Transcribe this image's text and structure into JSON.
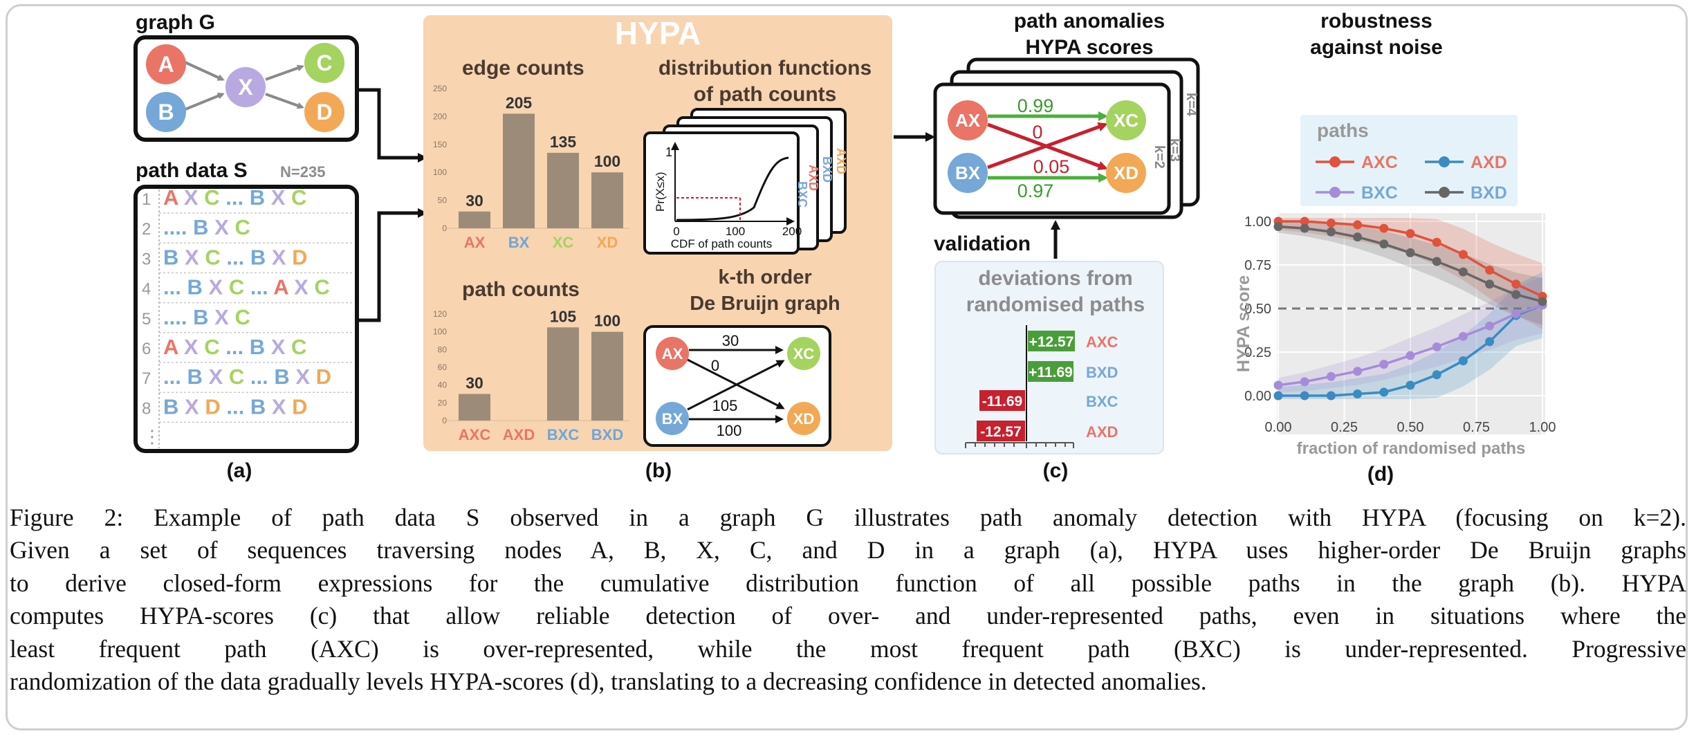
{
  "panel_a": {
    "graph_title": "graph G",
    "nodes": {
      "A": "A",
      "B": "B",
      "X": "X",
      "C": "C",
      "D": "D"
    },
    "path_data_title": "path data S",
    "n_label": "N=235",
    "rows": [
      {
        "num": "1",
        "text": "A X C ... B X C"
      },
      {
        "num": "2",
        "text": "....   B X C"
      },
      {
        "num": "3",
        "text": "B X C ... B X D"
      },
      {
        "num": "4",
        "text": "... B X C ... A X C"
      },
      {
        "num": "5",
        "text": "....       B X C"
      },
      {
        "num": "6",
        "text": "A X C ... B X C"
      },
      {
        "num": "7",
        "text": "... B X C ... B X D"
      },
      {
        "num": "8",
        "text": "B X D ... B X D"
      }
    ],
    "more": "⋮",
    "caption": "(a)"
  },
  "panel_b": {
    "title": "HYPA",
    "edge_counts_title": "edge counts",
    "path_counts_title": "path counts",
    "dist_title_1": "distribution functions",
    "dist_title_2": "of path counts",
    "cdf_ylabel": "Pr(X≤x)",
    "cdf_y_tick": "1",
    "cdf_x_ticks": [
      "0",
      "100",
      "200"
    ],
    "cdf_xlabel": "CDF of path counts",
    "stack_labels": [
      "BXC",
      "AXD",
      "BXD",
      "AXD"
    ],
    "debruijn_title_1": "k-th order",
    "debruijn_title_2": "De Bruijn graph",
    "debruijn_nodes": [
      "AX",
      "BX",
      "XC",
      "XD"
    ],
    "debruijn_edge_labels": [
      "30",
      "0",
      "105",
      "100"
    ],
    "caption": "(b)"
  },
  "panel_c": {
    "title_1": "path anomalies",
    "title_2": "HYPA scores",
    "layers": [
      "k=4",
      "k=3",
      "k=2"
    ],
    "nodes": [
      "AX",
      "BX",
      "XC",
      "XD"
    ],
    "edge_scores": [
      "0.99",
      "0",
      "0.05",
      "0.97"
    ],
    "validation_label": "validation",
    "deviation_title_1": "deviations from",
    "deviation_title_2": "randomised paths",
    "deviation_bars": [
      {
        "label": "AXC",
        "value_text": "+12.57"
      },
      {
        "label": "BXD",
        "value_text": "+11.69"
      },
      {
        "label": "BXC",
        "value_text": "-11.69"
      },
      {
        "label": "AXD",
        "value_text": "-12.57"
      }
    ],
    "caption": "(c)"
  },
  "panel_d": {
    "title_1": "robustness",
    "title_2": "against noise",
    "legend_title": "paths",
    "caption": "(d)"
  },
  "chart_data": [
    {
      "type": "bar",
      "title": "edge counts",
      "categories": [
        "AX",
        "BX",
        "XC",
        "XD"
      ],
      "values": [
        30,
        205,
        135,
        100
      ],
      "ylim": [
        0,
        250
      ],
      "yticks": [
        "0",
        "50",
        "100",
        "150",
        "200",
        "250"
      ],
      "category_colors": [
        "#e8746b",
        "#6fa5d6",
        "#a5d35f",
        "#f2a854"
      ]
    },
    {
      "type": "bar",
      "title": "path counts",
      "categories": [
        "AXC",
        "AXD",
        "BXC",
        "BXD"
      ],
      "values": [
        30,
        0,
        105,
        100
      ],
      "value_labels": [
        "30",
        "",
        "105",
        "100"
      ],
      "ylim": [
        0,
        120
      ],
      "yticks": [
        "0",
        "20",
        "40",
        "60",
        "80",
        "100",
        "120"
      ],
      "category_colors": [
        "#e8746b",
        "#e8746b",
        "#6fa5d6",
        "#6fa5d6"
      ]
    },
    {
      "type": "line",
      "xlabel": "fraction of randomised paths",
      "ylabel": "HYPA score",
      "x": [
        0,
        0.1,
        0.2,
        0.3,
        0.4,
        0.5,
        0.6,
        0.7,
        0.8,
        0.9,
        1.0
      ],
      "xticks": [
        "0.00",
        "0.25",
        "0.50",
        "0.75",
        "1.00"
      ],
      "yticks": [
        "0.00",
        "0.25",
        "0.50",
        "0.75",
        "1.00"
      ],
      "xlim": [
        0,
        1
      ],
      "ylim": [
        0,
        1
      ],
      "reference_line": 0.5,
      "legend_position": "top",
      "series": [
        {
          "name": "AXC",
          "color": "#e0523c",
          "values": [
            1.0,
            1.0,
            0.99,
            0.98,
            0.96,
            0.93,
            0.88,
            0.81,
            0.72,
            0.64,
            0.57
          ],
          "band": 0.14
        },
        {
          "name": "AXD",
          "color": "#3a8bc2",
          "values": [
            0.0,
            0.0,
            0.0,
            0.01,
            0.02,
            0.06,
            0.12,
            0.2,
            0.31,
            0.46,
            0.52
          ],
          "band": 0.14
        },
        {
          "name": "BXC",
          "color": "#a68cd8",
          "values": [
            0.06,
            0.08,
            0.11,
            0.14,
            0.18,
            0.23,
            0.28,
            0.34,
            0.4,
            0.47,
            0.52
          ],
          "band": 0.12
        },
        {
          "name": "BXD",
          "color": "#666666",
          "values": [
            0.97,
            0.96,
            0.94,
            0.91,
            0.87,
            0.82,
            0.77,
            0.71,
            0.64,
            0.58,
            0.54
          ],
          "band": 0.1
        }
      ]
    }
  ],
  "caption": {
    "lines": [
      "Figure 2:  Example of path data S observed in a graph G illustrates path anomaly detection with HYPA (focusing on k=2).",
      "Given a set of sequences traversing nodes A, B, X, C, and D in a graph (a), HYPA uses higher-order De Bruijn graphs",
      "to derive closed-form expressions for the cumulative distribution function of all possible paths in the graph (b).  HYPA",
      "computes HYPA-scores (c) that allow reliable detection of over- and under-represented paths, even in situations where the",
      "least frequent path (AXC) is over-represented, while the most frequent path (BXC) is under-represented.  Progressive",
      "randomization of the data gradually levels HYPA-scores (d), translating to a decreasing confidence in detected anomalies."
    ]
  }
}
